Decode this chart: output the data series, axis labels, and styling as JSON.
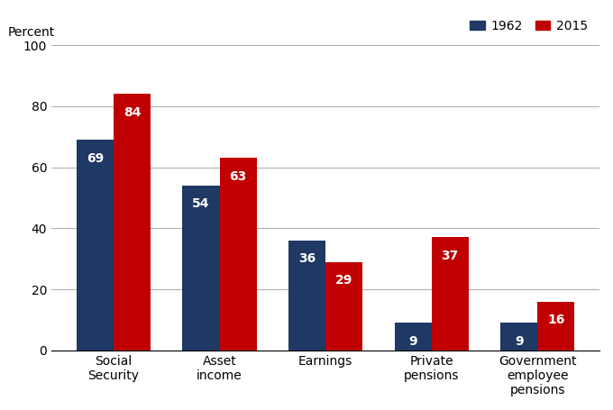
{
  "categories": [
    "Social\nSecurity",
    "Asset\nincome",
    "Earnings",
    "Private\npensions",
    "Government\nemployee\npensions"
  ],
  "values_1962": [
    69,
    54,
    36,
    9,
    9
  ],
  "values_2015": [
    84,
    63,
    29,
    37,
    16
  ],
  "color_1962": "#1f3864",
  "color_2015": "#c00000",
  "ylabel": "Percent",
  "ylim": [
    0,
    100
  ],
  "yticks": [
    0,
    20,
    40,
    60,
    80,
    100
  ],
  "legend_labels": [
    "1962",
    "2015"
  ],
  "bar_width": 0.35,
  "label_color_1962": "white",
  "label_color_2015": "white",
  "background_color": "#ffffff",
  "grid_color": "#aaaaaa"
}
